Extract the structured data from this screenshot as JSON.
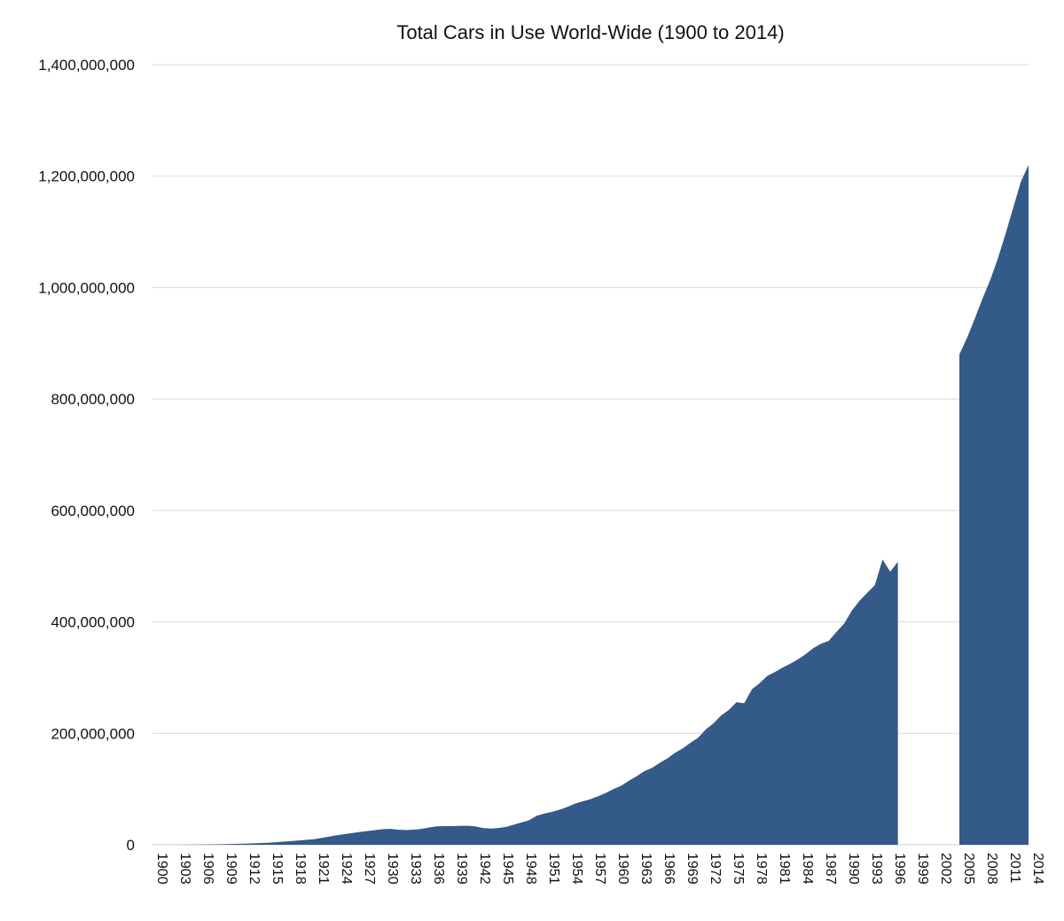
{
  "chart_data": {
    "type": "area",
    "title": "Total Cars in Use World-Wide (1900 to 2014)",
    "xlabel": "",
    "ylabel": "",
    "xlim": [
      1900,
      2014
    ],
    "ylim": [
      0,
      1400000000
    ],
    "grid": true,
    "legend": "none",
    "colors": {
      "fill": "#335a88",
      "grid": "#d9d9d9",
      "text": "#111111"
    },
    "y_ticks": [
      {
        "value": 0,
        "label": "0"
      },
      {
        "value": 200000000,
        "label": "200,000,000"
      },
      {
        "value": 400000000,
        "label": "400,000,000"
      },
      {
        "value": 600000000,
        "label": "600,000,000"
      },
      {
        "value": 800000000,
        "label": "800,000,000"
      },
      {
        "value": 1000000000,
        "label": "1,000,000,000"
      },
      {
        "value": 1200000000,
        "label": "1,200,000,000"
      },
      {
        "value": 1400000000,
        "label": "1,400,000,000"
      }
    ],
    "x_ticks": [
      "1900",
      "1903",
      "1906",
      "1909",
      "1912",
      "1915",
      "1918",
      "1921",
      "1924",
      "1927",
      "1930",
      "1933",
      "1936",
      "1939",
      "1942",
      "1945",
      "1948",
      "1951",
      "1954",
      "1957",
      "1960",
      "1963",
      "1966",
      "1969",
      "1972",
      "1975",
      "1978",
      "1981",
      "1984",
      "1987",
      "1990",
      "1993",
      "1996",
      "1999",
      "2002",
      "2005",
      "2008",
      "2011",
      "2014"
    ],
    "series": [
      {
        "segments": [
          {
            "x": [
              1900,
              1903,
              1906,
              1909,
              1912,
              1915,
              1918,
              1921,
              1924,
              1927,
              1930,
              1931,
              1932,
              1933,
              1934,
              1935,
              1936,
              1937,
              1938,
              1939,
              1940,
              1941,
              1942,
              1943,
              1944,
              1945,
              1946,
              1947,
              1948,
              1949,
              1950,
              1951,
              1952,
              1953,
              1954,
              1955,
              1956,
              1957,
              1958,
              1959,
              1960,
              1961,
              1962,
              1963,
              1964,
              1965,
              1966,
              1967,
              1968,
              1969,
              1970,
              1971,
              1972,
              1973,
              1974,
              1975,
              1976,
              1977,
              1978,
              1979,
              1980,
              1981,
              1982,
              1983,
              1984,
              1985,
              1986,
              1987,
              1988,
              1989,
              1990,
              1991,
              1992,
              1993,
              1994,
              1995,
              1996,
              1997
            ],
            "values": [
              10000,
              80000,
              400000,
              1000000,
              2000000,
              3500000,
              6500000,
              10000000,
              17000000,
              23000000,
              28000000,
              28500000,
              27000000,
              26500000,
              27000000,
              28500000,
              31000000,
              33000000,
              33500000,
              33500000,
              34000000,
              34000000,
              33000000,
              30000000,
              29000000,
              30000000,
              32000000,
              36000000,
              40000000,
              44000000,
              52000000,
              56000000,
              59000000,
              63000000,
              68000000,
              74000000,
              78000000,
              82000000,
              87000000,
              93000000,
              100000000,
              106000000,
              115000000,
              123000000,
              132000000,
              138000000,
              147000000,
              155000000,
              165000000,
              173000000,
              183000000,
              192000000,
              207000000,
              218000000,
              232000000,
              242000000,
              256000000,
              254000000,
              279000000,
              290000000,
              303000000,
              310000000,
              318000000,
              325000000,
              333000000,
              342000000,
              353000000,
              361000000,
              366000000,
              382000000,
              397000000,
              420000000,
              438000000,
              452000000,
              466000000,
              512000000,
              490000000,
              508000000
            ]
          },
          {
            "x": [
              2005,
              2006,
              2007,
              2008,
              2009,
              2010,
              2011,
              2012,
              2013,
              2014
            ],
            "values": [
              880000000,
              910000000,
              944000000,
              980000000,
              1013000000,
              1052000000,
              1096000000,
              1143000000,
              1190000000,
              1220000000
            ]
          }
        ]
      }
    ]
  }
}
